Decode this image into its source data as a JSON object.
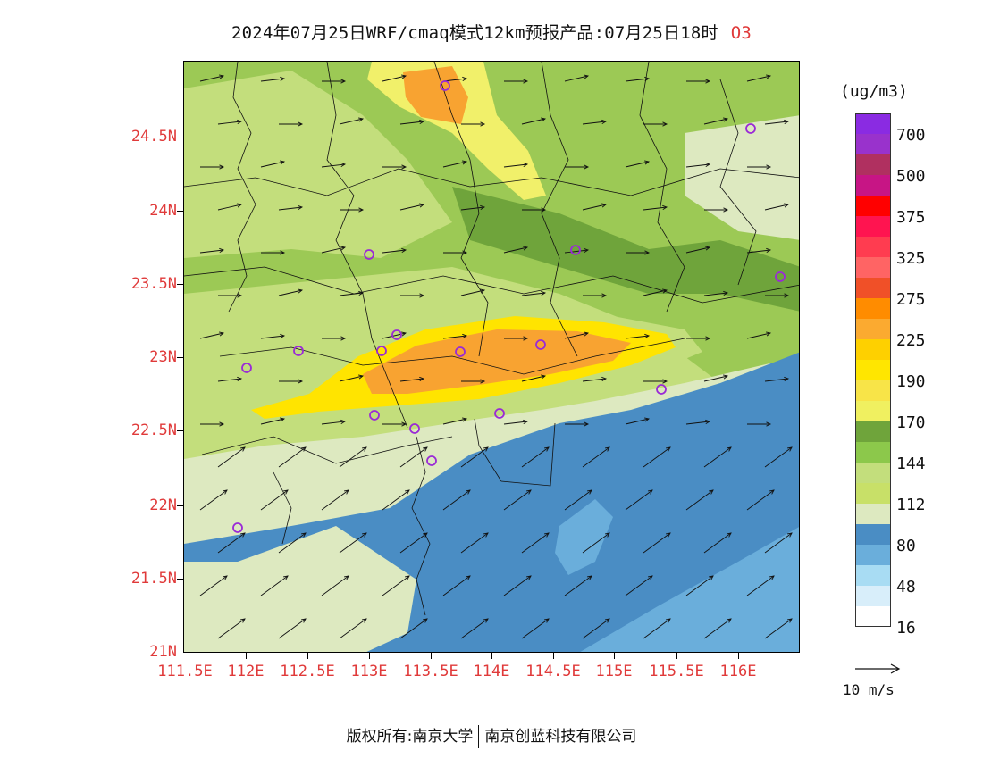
{
  "title": {
    "text": "2024年07月25日WRF/cmaq模式12km预报产品:07月25日18时",
    "species": "O3"
  },
  "map": {
    "lat_labels": [
      "24.5N",
      "24N",
      "23.5N",
      "23N",
      "22.5N",
      "22N",
      "21.5N",
      "21N"
    ],
    "lon_labels": [
      "111.5E",
      "112E",
      "112.5E",
      "113E",
      "113.5E",
      "114E",
      "114.5E",
      "115E",
      "115.5E",
      "116E"
    ],
    "colors": {
      "c16": "#ffffff",
      "c48": "#d8eefa",
      "c80l": "#a8dcf3",
      "c80": "#6aaedb",
      "c112b": "#4a8dc4",
      "c112": "#dde9c0",
      "c144l": "#c3de7c",
      "c144": "#9cc955",
      "c170d": "#6fa43b",
      "c170": "#f1f06a",
      "c190": "#ffe400",
      "c225": "#f8a331",
      "station": "#9a2ad6",
      "border": "#111111",
      "arrow": "#111111"
    }
  },
  "legend": {
    "units": "(ug/m3)",
    "colors": [
      "#8a2be2",
      "#9932cc",
      "#b03060",
      "#c71585",
      "#ff0000",
      "#ff1450",
      "#ff3c50",
      "#ff6464",
      "#f05028",
      "#ff8c00",
      "#fbaa30",
      "#fed000",
      "#ffe600",
      "#f8e448",
      "#f0f060",
      "#6fa43b",
      "#8cc84b",
      "#c3de7c",
      "#c8e068",
      "#dde9c0",
      "#4a8dc4",
      "#6aaedb",
      "#a8dcf3",
      "#d8eefa",
      "#ffffff"
    ],
    "labels": [
      "700",
      "500",
      "375",
      "325",
      "275",
      "225",
      "190",
      "170",
      "144",
      "112",
      "80",
      "48",
      "16"
    ],
    "vector_ref": "10 m/s"
  },
  "footer": {
    "left": "版权所有:南京大学",
    "right": "南京创蓝科技有限公司"
  }
}
